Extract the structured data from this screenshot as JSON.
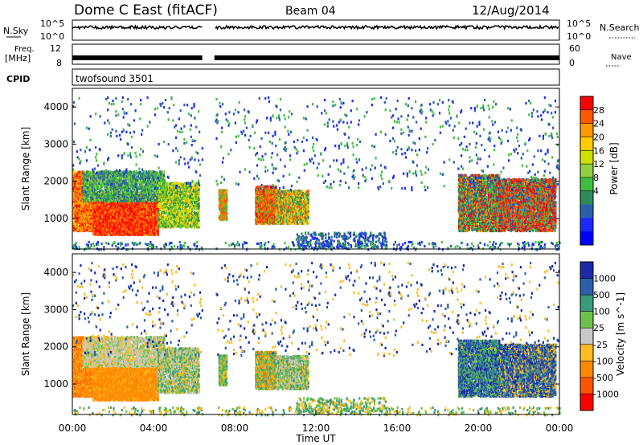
{
  "header": {
    "title": "Dome C East (fitACF)",
    "beam": "Beam 04",
    "date": "12/Aug/2014"
  },
  "top_panels": {
    "nsky_label": "N.Sky",
    "nsky_ticks": [
      "10^5",
      "10^0"
    ],
    "nsearch_label": "N.Search",
    "nsearch_ticks": [
      "10^5",
      "10^0"
    ],
    "freq_label_1": "Freq.",
    "freq_label_2": "[MHz]",
    "freq_ticks": [
      "12",
      "8"
    ],
    "nave_label": "Nave",
    "nave_ticks": [
      "60",
      "0"
    ],
    "cpid_label": "CPID",
    "cpid_value": "twofsound 3501"
  },
  "chart_data": [
    {
      "type": "heatmap",
      "name": "power",
      "ylabel": "Slant Range [km]",
      "yticks": [
        1000,
        2000,
        3000,
        4000
      ],
      "ylim": [
        180,
        4500
      ],
      "xlim_hours": [
        0,
        24
      ],
      "xticks": [
        0,
        4,
        8,
        12,
        16,
        20,
        24
      ],
      "colorbar": {
        "label": "Power [dB]",
        "ticks": [
          "28",
          "24",
          "20",
          "16",
          "12",
          "8",
          "4"
        ],
        "colors": [
          "#ff0000",
          "#ff5a00",
          "#ff9900",
          "#ffcc00",
          "#cde000",
          "#8fd040",
          "#3fbf3f",
          "#2e8a57",
          "#2a5faa",
          "#1a2aff",
          "#0000ff"
        ]
      }
    },
    {
      "type": "heatmap",
      "name": "velocity",
      "ylabel": "Slant Range [km]",
      "yticks": [
        1000,
        2000,
        3000,
        4000
      ],
      "ylim": [
        180,
        4500
      ],
      "xlim_hours": [
        0,
        24
      ],
      "xticks": [
        0,
        4,
        8,
        12,
        16,
        20,
        24
      ],
      "colorbar": {
        "label": "Velocity [m s^-1]",
        "ticks": [
          "1000",
          "500",
          "100",
          "25",
          "-25",
          "-100",
          "-500",
          "-1000"
        ],
        "colors": [
          "#1a2aaa",
          "#2a5faa",
          "#3a9a7a",
          "#6cc24a",
          "#c8c8c8",
          "#ffbb22",
          "#ff8800",
          "#ff5500",
          "#ff0000"
        ]
      }
    }
  ],
  "xaxis": {
    "tick_labels": [
      "00:00",
      "04:00",
      "08:00",
      "12:00",
      "16:00",
      "20:00",
      "00:00"
    ],
    "label": "Time UT"
  }
}
